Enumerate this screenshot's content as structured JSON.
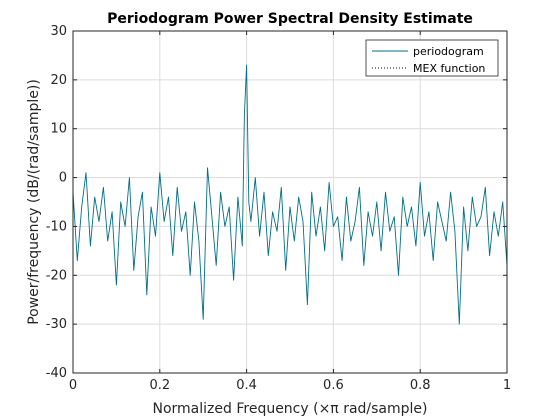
{
  "chart_data": {
    "type": "line",
    "title": "Periodogram Power Spectral Density Estimate",
    "xlabel": "Normalized Frequency  (×π rad/sample)",
    "ylabel": "Power/frequency (dB/(rad/sample))",
    "xlim": [
      0,
      1
    ],
    "ylim": [
      -40,
      30
    ],
    "x_ticks": [
      0,
      0.2,
      0.4,
      0.6,
      0.8,
      1
    ],
    "x_tick_labels": [
      "0",
      "0.2",
      "0.4",
      "0.6",
      "0.8",
      "1"
    ],
    "y_ticks": [
      -40,
      -30,
      -20,
      -10,
      0,
      10,
      20,
      30
    ],
    "y_tick_labels": [
      "-40",
      "-30",
      "-20",
      "-10",
      "0",
      "10",
      "20",
      "30"
    ],
    "grid": true,
    "legend_position": "top-right",
    "series": [
      {
        "name": "periodogram",
        "color": "#006f87",
        "style": "solid",
        "x": [
          0,
          0.01,
          0.02,
          0.03,
          0.04,
          0.05,
          0.06,
          0.07,
          0.08,
          0.09,
          0.1,
          0.11,
          0.12,
          0.13,
          0.14,
          0.15,
          0.16,
          0.17,
          0.18,
          0.19,
          0.2,
          0.21,
          0.22,
          0.23,
          0.24,
          0.25,
          0.26,
          0.27,
          0.28,
          0.29,
          0.3,
          0.31,
          0.32,
          0.33,
          0.34,
          0.35,
          0.36,
          0.37,
          0.38,
          0.39,
          0.395,
          0.4,
          0.405,
          0.41,
          0.42,
          0.43,
          0.44,
          0.45,
          0.46,
          0.47,
          0.48,
          0.49,
          0.5,
          0.51,
          0.52,
          0.53,
          0.54,
          0.55,
          0.56,
          0.57,
          0.58,
          0.59,
          0.6,
          0.61,
          0.62,
          0.63,
          0.64,
          0.65,
          0.66,
          0.67,
          0.68,
          0.69,
          0.7,
          0.71,
          0.72,
          0.73,
          0.74,
          0.75,
          0.76,
          0.77,
          0.78,
          0.79,
          0.8,
          0.81,
          0.82,
          0.83,
          0.84,
          0.85,
          0.86,
          0.87,
          0.88,
          0.89,
          0.9,
          0.91,
          0.92,
          0.93,
          0.94,
          0.95,
          0.96,
          0.97,
          0.98,
          0.99,
          1
        ],
        "values": [
          -3,
          -17,
          -6,
          1,
          -14,
          -4,
          -9,
          -2,
          -13,
          -7,
          -22,
          -5,
          -10,
          0,
          -19,
          -8,
          -3,
          -24,
          -6,
          -12,
          1,
          -9,
          -4,
          -16,
          -2,
          -11,
          -7,
          -20,
          -5,
          -13,
          -29,
          2,
          -8,
          -18,
          -3,
          -10,
          -6,
          -21,
          -4,
          -14,
          13,
          23,
          -5,
          -9,
          0,
          -12,
          -3,
          -16,
          -7,
          -11,
          -2,
          -19,
          -6,
          -13,
          -4,
          -9,
          -26,
          -3,
          -12,
          -6,
          -15,
          -1,
          -10,
          -8,
          -17,
          -4,
          -13,
          -9,
          -2,
          -18,
          -7,
          -12,
          -5,
          -15,
          -3,
          -11,
          -8,
          -20,
          -4,
          -10,
          -6,
          -14,
          -1,
          -12,
          -7,
          -17,
          -5,
          -9,
          -13,
          -3,
          -11,
          -30,
          -6,
          -15,
          -4,
          -10,
          -8,
          -2,
          -16,
          -7,
          -12,
          -5,
          -18
        ]
      },
      {
        "name": "MEX function",
        "color": "#000000",
        "style": "dotted"
      }
    ]
  }
}
